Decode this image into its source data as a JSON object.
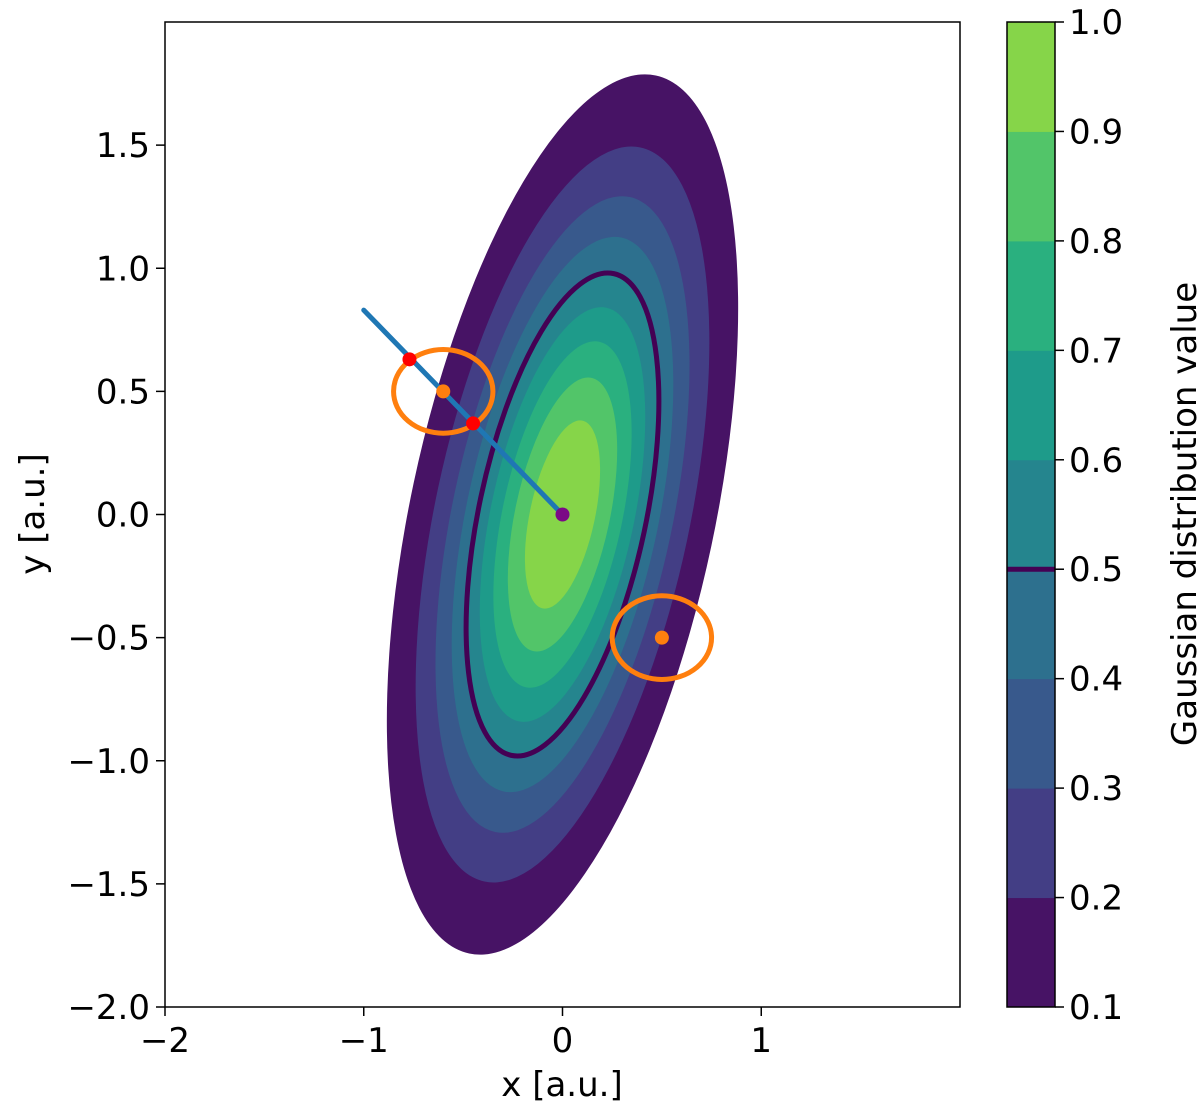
{
  "chart_data": {
    "type": "contour",
    "xlabel": "x [a.u.]",
    "ylabel": "y [a.u.]",
    "xlim": [
      -2,
      2
    ],
    "ylim": [
      -2,
      2
    ],
    "x_ticks": [
      -2,
      -1,
      0,
      1
    ],
    "x_tick_labels": [
      "−2",
      "−1",
      "0",
      "1"
    ],
    "y_ticks": [
      -2.0,
      -1.5,
      -1.0,
      -0.5,
      0.0,
      0.5,
      1.0,
      1.5
    ],
    "y_tick_labels": [
      "−2.0",
      "−1.5",
      "−1.0",
      "−0.5",
      "0.0",
      "0.5",
      "1.0",
      "1.5"
    ],
    "gaussian": {
      "center": [
        0,
        0
      ],
      "semi_major_at_half": 1.0,
      "semi_minor_at_half": 0.42,
      "tilt_deg_from_vertical": 12
    },
    "levels": [
      0.1,
      0.2,
      0.3,
      0.4,
      0.5,
      0.6,
      0.7,
      0.8,
      0.9,
      1.0
    ],
    "level_colors": [
      "#471365",
      "#433e85",
      "#38598c",
      "#2d708e",
      "#25858e",
      "#1e9b8a",
      "#2ab07f",
      "#52c569",
      "#86d549",
      "#c2df23"
    ],
    "highlight_level": 0.5,
    "highlight_color": "#440154",
    "colorbar": {
      "label": "Gaussian distribution value",
      "tick_values": [
        0.1,
        0.2,
        0.3,
        0.4,
        0.5,
        0.6,
        0.7,
        0.8,
        0.9,
        1.0
      ],
      "tick_labels": [
        "0.1",
        "0.2",
        "0.3",
        "0.4",
        "0.5",
        "0.6",
        "0.7",
        "0.8",
        "0.9",
        "1.0"
      ]
    },
    "line": {
      "from": [
        -1.0,
        0.83
      ],
      "to": [
        0.0,
        0.0
      ],
      "color": "#1f77b4"
    },
    "center_point": {
      "x": 0.0,
      "y": 0.0,
      "color": "#7b0a86"
    },
    "orange_circles": [
      {
        "x": -0.6,
        "y": 0.5,
        "rx": 0.25,
        "ry": 0.17
      },
      {
        "x": 0.5,
        "y": -0.5,
        "rx": 0.25,
        "ry": 0.17
      }
    ],
    "orange_color": "#ff7f0e",
    "intersection_points": [
      {
        "x": -0.77,
        "y": 0.63
      },
      {
        "x": -0.45,
        "y": 0.37
      }
    ],
    "intersection_color": "#ff0000"
  }
}
